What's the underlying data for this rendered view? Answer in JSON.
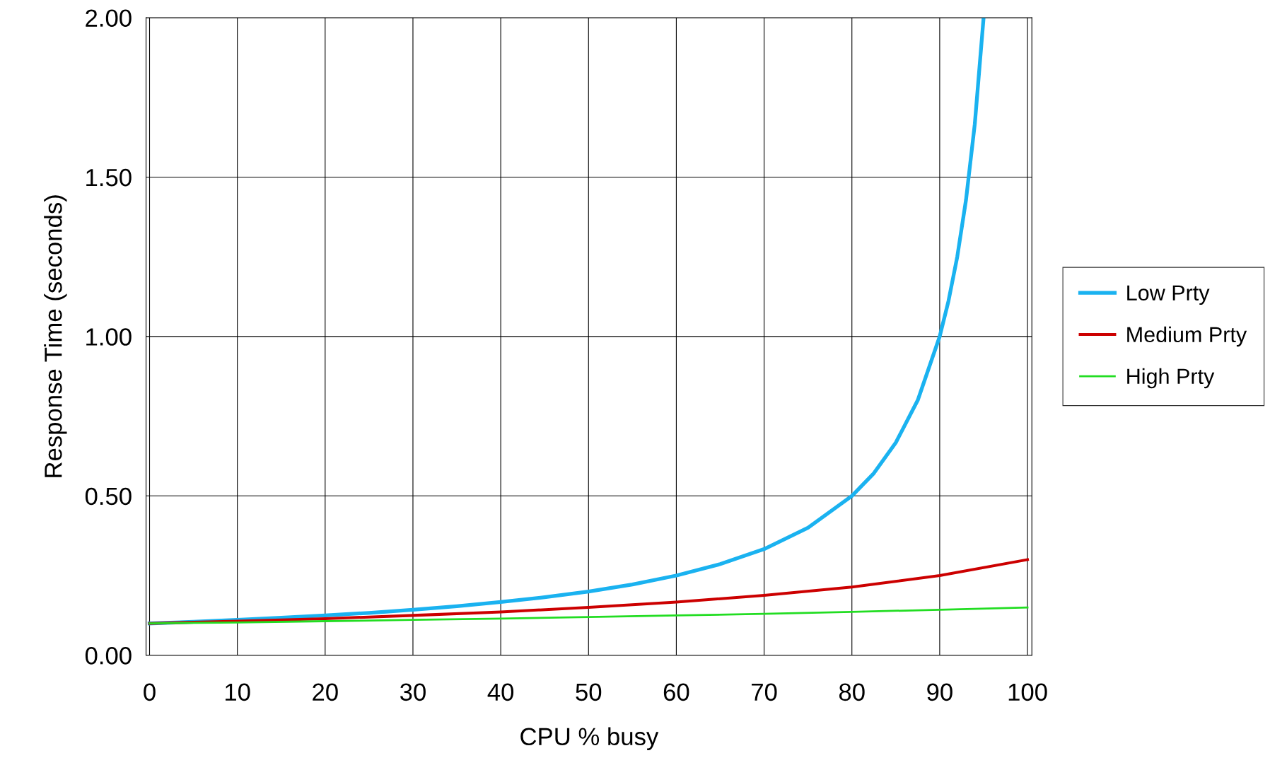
{
  "chart_data": {
    "type": "line",
    "xlabel": "CPU % busy",
    "ylabel": "Response Time (seconds)",
    "xlim": [
      -0.4,
      100.5
    ],
    "xticks": [
      0,
      10,
      20,
      30,
      40,
      50,
      60,
      70,
      80,
      90,
      100
    ],
    "ylim": [
      0,
      2
    ],
    "yticks": [
      {
        "value": 0,
        "label": "0.00"
      },
      {
        "value": 0.5,
        "label": "0.50"
      },
      {
        "value": 1,
        "label": "1.00"
      },
      {
        "value": 1.5,
        "label": "1.50"
      },
      {
        "value": 2,
        "label": "2.00"
      }
    ],
    "grid": true,
    "legend": "right",
    "marker": "none",
    "line_style": "solid",
    "series": [
      {
        "name": "Low Prty",
        "color": "#1ab2f0",
        "x": [
          0,
          5,
          10,
          15,
          20,
          25,
          30,
          35,
          40,
          45,
          50,
          55,
          60,
          65,
          70,
          75,
          80,
          82.5,
          85,
          87.5,
          90,
          91,
          92,
          93,
          94,
          95
        ],
        "values": [
          0.1,
          0.105,
          0.111,
          0.118,
          0.125,
          0.133,
          0.143,
          0.154,
          0.167,
          0.182,
          0.2,
          0.222,
          0.25,
          0.286,
          0.333,
          0.4,
          0.5,
          0.571,
          0.667,
          0.8,
          1.0,
          1.111,
          1.25,
          1.429,
          1.667,
          2.0
        ]
      },
      {
        "name": "Medium Prty",
        "color": "#cc0000",
        "x": [
          0,
          10,
          20,
          30,
          40,
          50,
          60,
          70,
          80,
          90,
          100
        ],
        "values": [
          0.1,
          0.107,
          0.115,
          0.125,
          0.136,
          0.15,
          0.167,
          0.188,
          0.214,
          0.25,
          0.3
        ]
      },
      {
        "name": "High Prty",
        "color": "#22dd22",
        "x": [
          0,
          10,
          20,
          30,
          40,
          50,
          60,
          70,
          80,
          90,
          100
        ],
        "values": [
          0.1,
          0.103,
          0.107,
          0.111,
          0.115,
          0.12,
          0.125,
          0.13,
          0.136,
          0.143,
          0.15
        ]
      }
    ]
  }
}
